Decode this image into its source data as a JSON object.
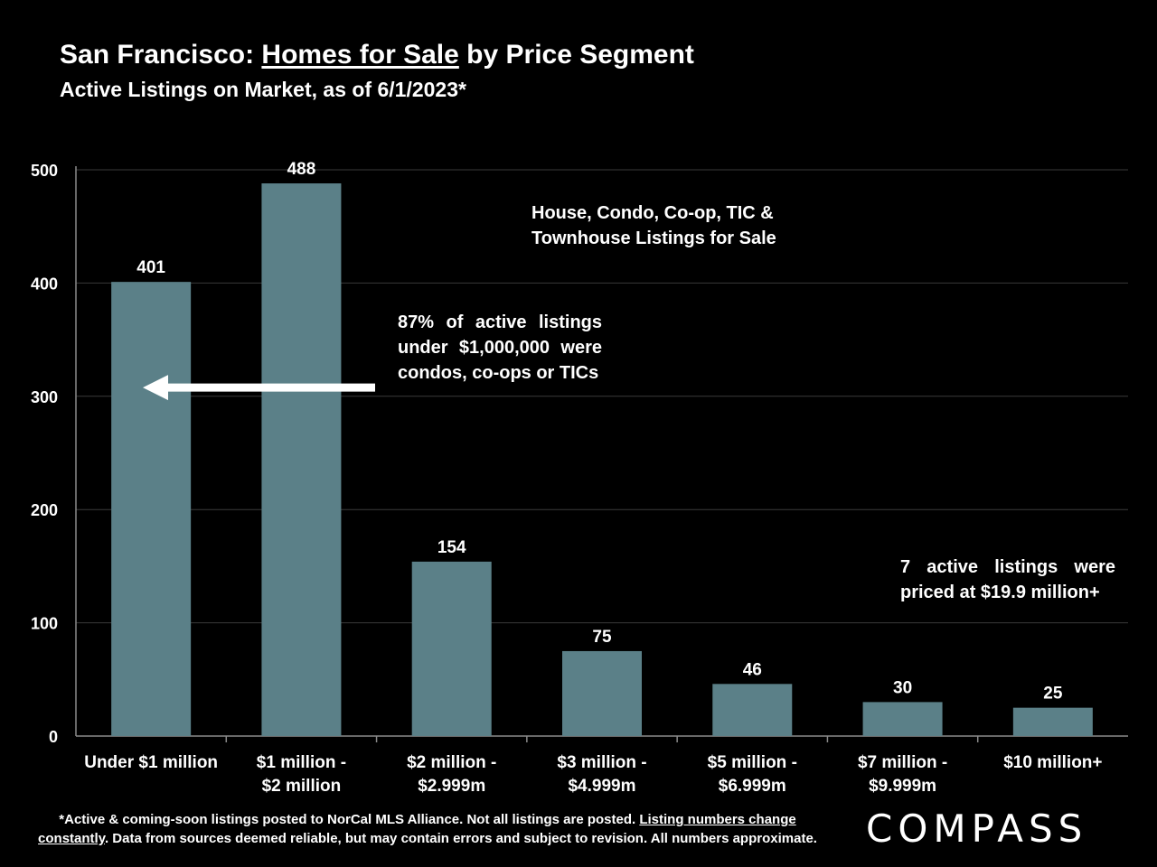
{
  "header": {
    "title_pre": "San Francisco: ",
    "title_underlined": "Homes for Sale",
    "title_post": " by Price Segment",
    "subtitle": "Active Listings on Market, as of 6/1/2023*"
  },
  "chart_data": {
    "type": "bar",
    "categories": [
      [
        "Under $1 million"
      ],
      [
        "$1 million -",
        "$2 million"
      ],
      [
        "$2 million -",
        "$2.999m"
      ],
      [
        "$3 million -",
        "$4.999m"
      ],
      [
        "$5 million -",
        "$6.999m"
      ],
      [
        "$7 million -",
        "$9.999m"
      ],
      [
        "$10 million+"
      ]
    ],
    "values": [
      401,
      488,
      154,
      75,
      46,
      30,
      25
    ],
    "ylim": [
      0,
      500
    ],
    "yticks": [
      0,
      100,
      200,
      300,
      400,
      500
    ],
    "grid": true,
    "bar_color": "#5b8088",
    "grid_color": "#3a3a3a",
    "arrow": {
      "from_category": 2,
      "to_category": 0,
      "at_value": 342
    }
  },
  "annotations": {
    "types": "House, Condo, Co-op, TIC & Townhouse Listings for Sale",
    "condo_note": "87% of active listings under $1,000,000 were condos, co-ops or TICs",
    "top_note": "7 active listings were priced at $19.9 million+"
  },
  "footnote": {
    "part1": "*Active & coming-soon listings posted to NorCal MLS Alliance. Not all listings are posted. ",
    "underlined": "Listing numbers change constantly",
    "part2": ". Data from sources deemed reliable, but may contain errors and subject to revision. All numbers approximate."
  },
  "brand": {
    "logo_text": "COMPASS"
  }
}
